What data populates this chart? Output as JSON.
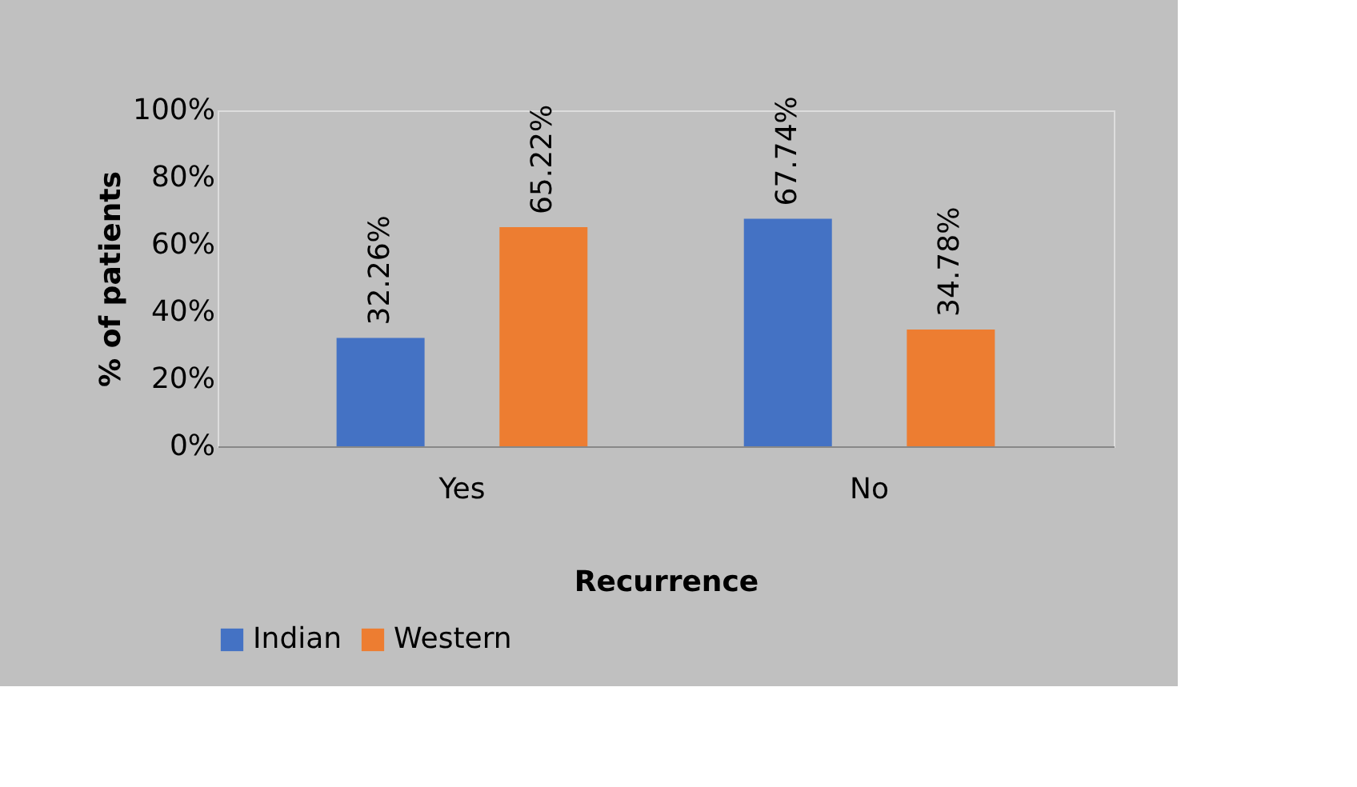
{
  "chart_data": {
    "type": "bar",
    "xlabel": "Recurrence",
    "ylabel": "% of patients",
    "categories": [
      "Yes",
      "No"
    ],
    "series": [
      {
        "name": "Indian",
        "color": "#4472c4",
        "values": [
          32.26,
          67.74
        ],
        "value_labels": [
          "32.26%",
          "67.74%"
        ]
      },
      {
        "name": "Western",
        "color": "#ed7d31",
        "values": [
          65.22,
          34.78
        ],
        "value_labels": [
          "65.22%",
          "34.78%"
        ]
      }
    ],
    "ylim": [
      0,
      100
    ],
    "yticks": [
      {
        "value": 0,
        "label": "0%"
      },
      {
        "value": 20,
        "label": "20%"
      },
      {
        "value": 40,
        "label": "40%"
      },
      {
        "value": 60,
        "label": "60%"
      },
      {
        "value": 80,
        "label": "80%"
      },
      {
        "value": 100,
        "label": "100%"
      }
    ],
    "grid": false,
    "legend": "bottom"
  }
}
